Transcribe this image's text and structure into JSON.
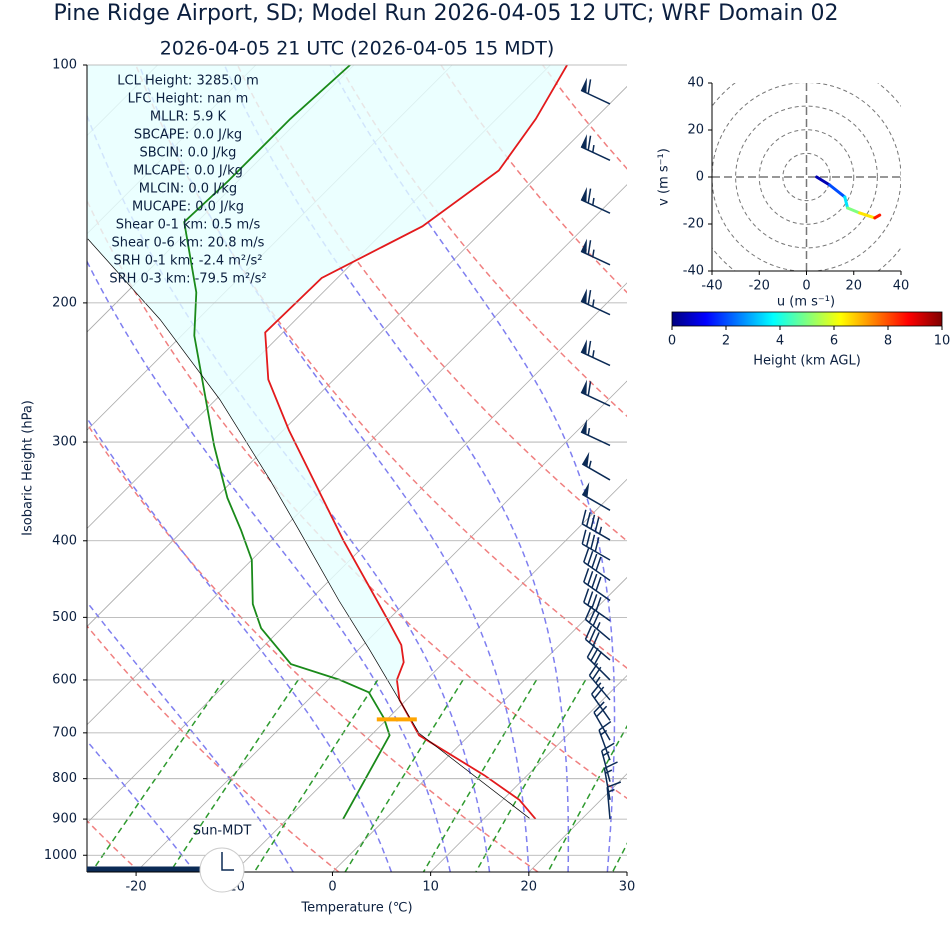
{
  "chart_data": [
    {
      "type": "skewt",
      "title": "Pine Ridge Airport, SD; Model Run 2026-04-05 12 UTC; WRF Domain 02",
      "subtitle": "2026-04-05 21 UTC  (2026-04-05 15 MDT)",
      "xlabel": "Temperature (℃)",
      "ylabel": "Isobaric Height (hPa)",
      "xlim": [
        -25,
        30
      ],
      "ylim": [
        1050,
        100
      ],
      "log_y": true,
      "xticks": [
        -20,
        -10,
        0,
        10,
        20,
        30
      ],
      "yticks": [
        100,
        200,
        300,
        400,
        500,
        600,
        700,
        800,
        900,
        1000
      ],
      "series": [
        {
          "name": "Temperature",
          "color": "#e31a1c",
          "pressure": [
            900,
            851,
            792,
            705,
            636,
            600,
            570,
            542,
            505,
            400,
            290,
            250,
            218,
            186,
            160,
            136,
            117,
            100
          ],
          "values": [
            15.3,
            11.7,
            5.6,
            -5.1,
            -10.7,
            -13.0,
            -14.1,
            -16.1,
            -19.9,
            -32.6,
            -49.4,
            -56.7,
            -61.8,
            -61.6,
            -56.6,
            -54.5,
            -56.0,
            -58.3
          ]
        },
        {
          "name": "Dewpoint",
          "color": "#1a8a1a",
          "pressure": [
            900,
            705,
            671,
            622,
            600,
            573,
            516,
            481,
            423,
            388,
            353,
            303,
            220,
            194,
            158,
            140,
            117,
            100
          ],
          "values": [
            -4.3,
            -8.1,
            -10.4,
            -14.6,
            -18.8,
            -25.4,
            -32.1,
            -35.4,
            -40.0,
            -44.1,
            -48.8,
            -55.5,
            -68.7,
            -72.9,
            -81.3,
            -81.0,
            -81.0,
            -80.4
          ]
        },
        {
          "name": "Parcel",
          "color": "#000000",
          "pressure": [
            898,
            701,
            550,
            476,
            388,
            335,
            265,
            210,
            166
          ],
          "values": [
            14.6,
            -5.3,
            -18.8,
            -27.0,
            -38.2,
            -46.3,
            -59.6,
            -73.8,
            -89.4
          ]
        }
      ],
      "lcl_pressure": 673,
      "lcl_color": "#ffa500",
      "annotations": [
        "LCL Height: 3285.0 m",
        "LFC Height: nan m",
        "MLLR: 5.9 K",
        "SBCAPE: 0.0 J/kg",
        "SBCIN: 0.0 J/kg",
        "MLCAPE: 0.0 J/kg",
        "MLCIN: 0.0 J/kg",
        "MUCAPE: 0.0 J/kg",
        "Shear 0-1 km: 0.5 m/s",
        "Shear 0-6 km: 20.8 m/s",
        "SRH 0-1 km: -2.4 m²/s²",
        "SRH 0-3 km: -79.5 m²/s²"
      ],
      "sun_label": "Sun-MDT",
      "wind_barbs": {
        "color": "#0b2a55",
        "pressure": [
          900,
          851,
          807,
          758,
          715,
          675,
          636,
          600,
          566,
          534,
          505,
          476,
          449,
          423,
          399,
          366,
          335,
          303,
          270,
          240,
          207,
          179,
          154,
          132,
          112
        ],
        "speed": [
          15,
          15,
          15,
          15,
          20,
          20,
          25,
          30,
          30,
          35,
          40,
          40,
          40,
          40,
          45,
          50,
          55,
          55,
          60,
          65,
          65,
          65,
          65,
          65,
          60
        ],
        "direction": [
          355,
          350,
          345,
          340,
          330,
          325,
          320,
          315,
          310,
          310,
          305,
          305,
          305,
          300,
          300,
          300,
          300,
          295,
          295,
          295,
          295,
          295,
          295,
          295,
          295
        ]
      }
    },
    {
      "type": "hodograph",
      "xlabel": "u (m s⁻¹)",
      "ylabel": "v (m s⁻¹)",
      "xlim": [
        -40,
        40
      ],
      "ylim": [
        -40,
        40
      ],
      "xticks": [
        -40,
        -20,
        0,
        20,
        40
      ],
      "yticks": [
        -40,
        -20,
        0,
        20,
        40
      ],
      "rings": [
        10,
        20,
        30,
        40,
        50
      ],
      "u": [
        4.3,
        9.8,
        16.2,
        17.4,
        22.5,
        28.9,
        31.0
      ],
      "v": [
        0,
        -3.4,
        -8.5,
        -13.2,
        -15.3,
        -17.4,
        -16.2
      ],
      "height": [
        0.5,
        2,
        3.5,
        5,
        6.5,
        8.5,
        10
      ],
      "colorbar_label": "Height (km AGL)",
      "colorbar_lim": [
        0,
        10
      ],
      "colorbar_ticks": [
        0,
        2,
        4,
        6,
        8,
        10
      ]
    }
  ]
}
